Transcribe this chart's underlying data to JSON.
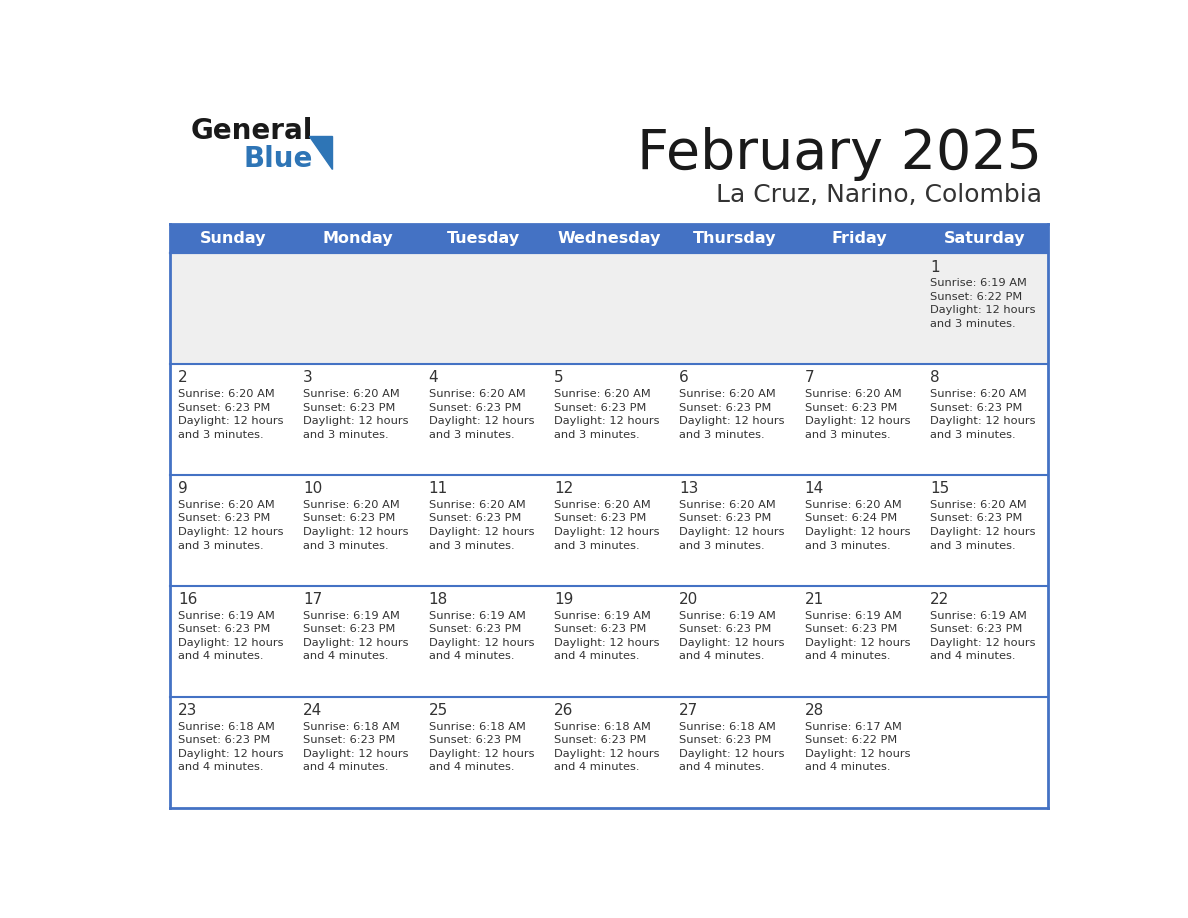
{
  "title": "February 2025",
  "subtitle": "La Cruz, Narino, Colombia",
  "header_bg_color": "#4472C4",
  "header_text_color": "#FFFFFF",
  "row_bg_week1": "#EFEFEF",
  "row_bg_other": "#FFFFFF",
  "border_color": "#4472C4",
  "grid_line_color": "#AAAAAA",
  "day_headers": [
    "Sunday",
    "Monday",
    "Tuesday",
    "Wednesday",
    "Thursday",
    "Friday",
    "Saturday"
  ],
  "title_color": "#1a1a1a",
  "subtitle_color": "#333333",
  "day_number_color": "#333333",
  "info_color": "#333333",
  "logo_general_color": "#1a1a1a",
  "logo_blue_color": "#2E75B6",
  "logo_triangle_color": "#2E75B6",
  "calendar": [
    [
      null,
      null,
      null,
      null,
      null,
      null,
      {
        "day": 1,
        "sunrise": "6:19 AM",
        "sunset": "6:22 PM",
        "daylight": "12 hours and 3 minutes."
      }
    ],
    [
      {
        "day": 2,
        "sunrise": "6:20 AM",
        "sunset": "6:23 PM",
        "daylight": "12 hours and 3 minutes."
      },
      {
        "day": 3,
        "sunrise": "6:20 AM",
        "sunset": "6:23 PM",
        "daylight": "12 hours and 3 minutes."
      },
      {
        "day": 4,
        "sunrise": "6:20 AM",
        "sunset": "6:23 PM",
        "daylight": "12 hours and 3 minutes."
      },
      {
        "day": 5,
        "sunrise": "6:20 AM",
        "sunset": "6:23 PM",
        "daylight": "12 hours and 3 minutes."
      },
      {
        "day": 6,
        "sunrise": "6:20 AM",
        "sunset": "6:23 PM",
        "daylight": "12 hours and 3 minutes."
      },
      {
        "day": 7,
        "sunrise": "6:20 AM",
        "sunset": "6:23 PM",
        "daylight": "12 hours and 3 minutes."
      },
      {
        "day": 8,
        "sunrise": "6:20 AM",
        "sunset": "6:23 PM",
        "daylight": "12 hours and 3 minutes."
      }
    ],
    [
      {
        "day": 9,
        "sunrise": "6:20 AM",
        "sunset": "6:23 PM",
        "daylight": "12 hours and 3 minutes."
      },
      {
        "day": 10,
        "sunrise": "6:20 AM",
        "sunset": "6:23 PM",
        "daylight": "12 hours and 3 minutes."
      },
      {
        "day": 11,
        "sunrise": "6:20 AM",
        "sunset": "6:23 PM",
        "daylight": "12 hours and 3 minutes."
      },
      {
        "day": 12,
        "sunrise": "6:20 AM",
        "sunset": "6:23 PM",
        "daylight": "12 hours and 3 minutes."
      },
      {
        "day": 13,
        "sunrise": "6:20 AM",
        "sunset": "6:23 PM",
        "daylight": "12 hours and 3 minutes."
      },
      {
        "day": 14,
        "sunrise": "6:20 AM",
        "sunset": "6:24 PM",
        "daylight": "12 hours and 3 minutes."
      },
      {
        "day": 15,
        "sunrise": "6:20 AM",
        "sunset": "6:23 PM",
        "daylight": "12 hours and 3 minutes."
      }
    ],
    [
      {
        "day": 16,
        "sunrise": "6:19 AM",
        "sunset": "6:23 PM",
        "daylight": "12 hours and 4 minutes."
      },
      {
        "day": 17,
        "sunrise": "6:19 AM",
        "sunset": "6:23 PM",
        "daylight": "12 hours and 4 minutes."
      },
      {
        "day": 18,
        "sunrise": "6:19 AM",
        "sunset": "6:23 PM",
        "daylight": "12 hours and 4 minutes."
      },
      {
        "day": 19,
        "sunrise": "6:19 AM",
        "sunset": "6:23 PM",
        "daylight": "12 hours and 4 minutes."
      },
      {
        "day": 20,
        "sunrise": "6:19 AM",
        "sunset": "6:23 PM",
        "daylight": "12 hours and 4 minutes."
      },
      {
        "day": 21,
        "sunrise": "6:19 AM",
        "sunset": "6:23 PM",
        "daylight": "12 hours and 4 minutes."
      },
      {
        "day": 22,
        "sunrise": "6:19 AM",
        "sunset": "6:23 PM",
        "daylight": "12 hours and 4 minutes."
      }
    ],
    [
      {
        "day": 23,
        "sunrise": "6:18 AM",
        "sunset": "6:23 PM",
        "daylight": "12 hours and 4 minutes."
      },
      {
        "day": 24,
        "sunrise": "6:18 AM",
        "sunset": "6:23 PM",
        "daylight": "12 hours and 4 minutes."
      },
      {
        "day": 25,
        "sunrise": "6:18 AM",
        "sunset": "6:23 PM",
        "daylight": "12 hours and 4 minutes."
      },
      {
        "day": 26,
        "sunrise": "6:18 AM",
        "sunset": "6:23 PM",
        "daylight": "12 hours and 4 minutes."
      },
      {
        "day": 27,
        "sunrise": "6:18 AM",
        "sunset": "6:23 PM",
        "daylight": "12 hours and 4 minutes."
      },
      {
        "day": 28,
        "sunrise": "6:17 AM",
        "sunset": "6:22 PM",
        "daylight": "12 hours and 4 minutes."
      },
      null
    ]
  ]
}
